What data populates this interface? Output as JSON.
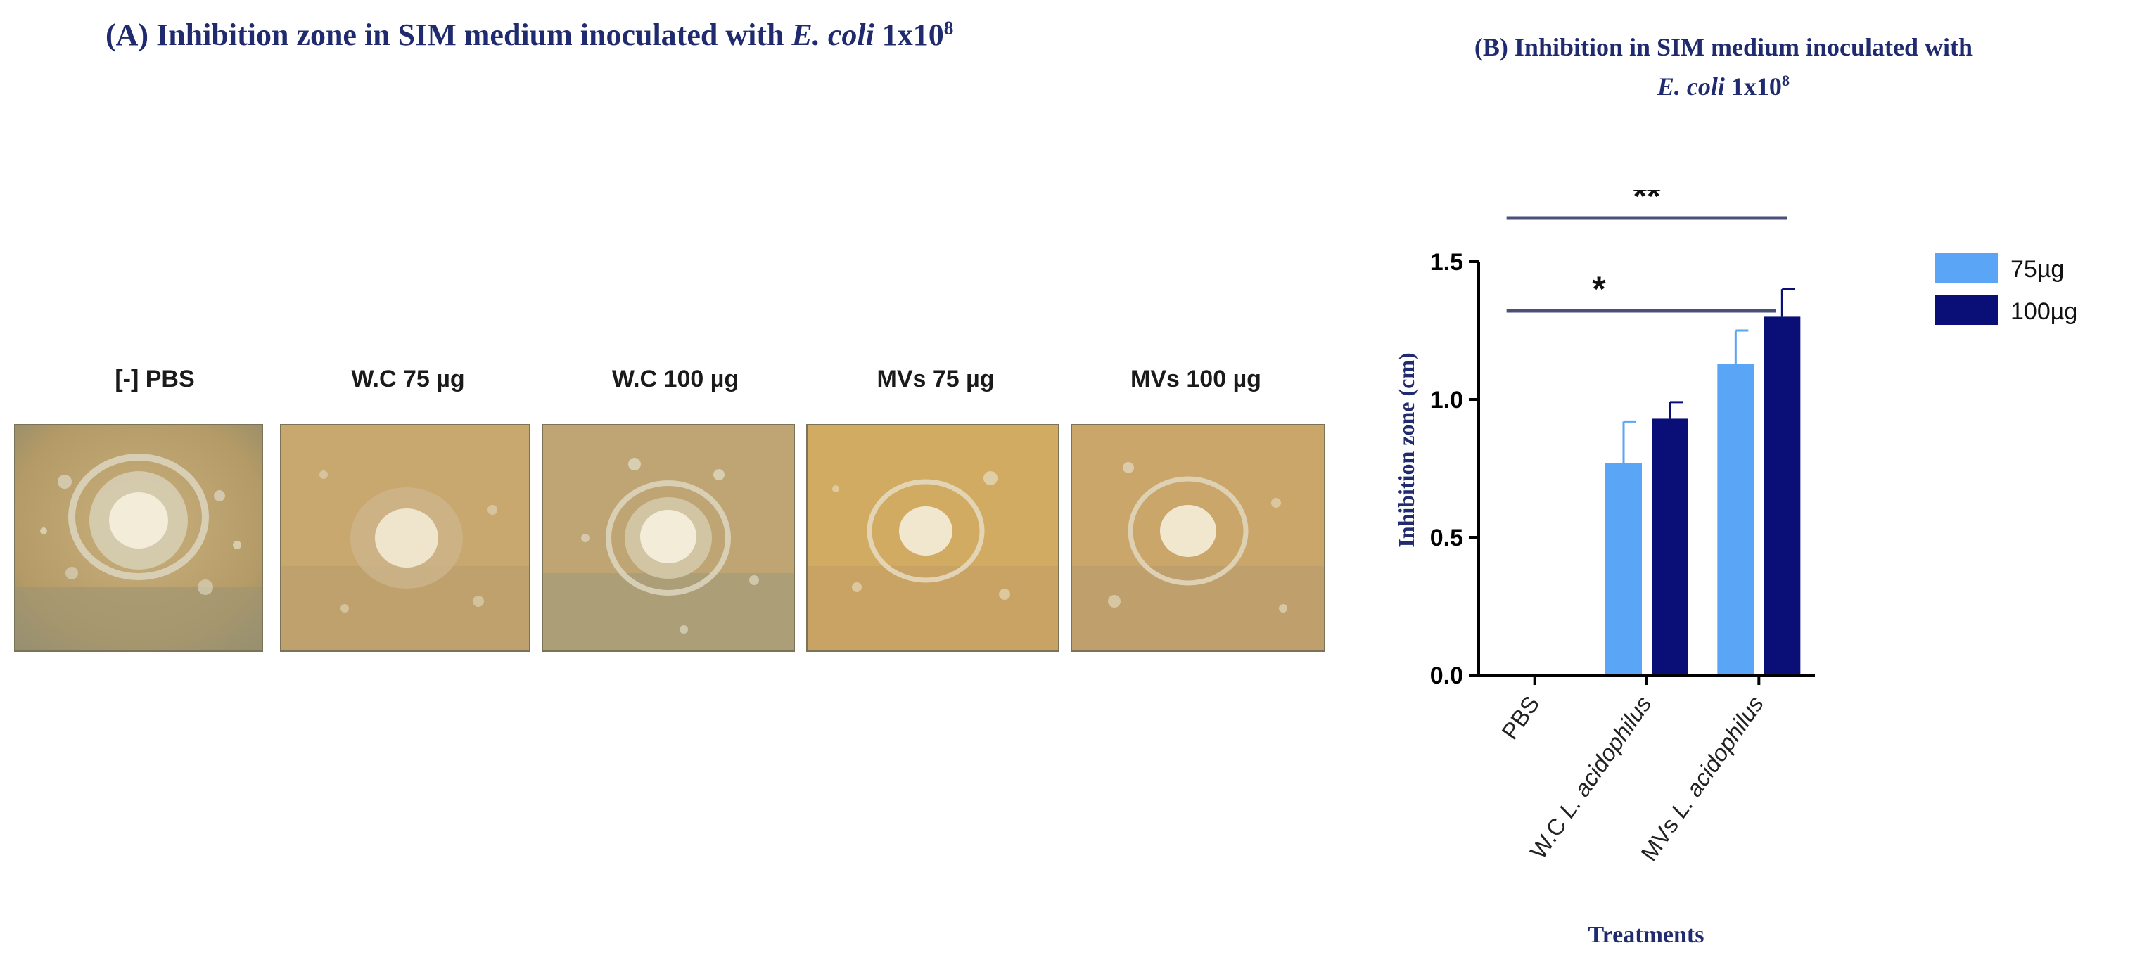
{
  "panel_a": {
    "title_prefix": "(A) Inhibition zone in SIM medium inoculated with",
    "title_species": "E. coli",
    "title_conc_base": "1x10",
    "title_conc_exp": "8",
    "images": [
      {
        "label": "[-] PBS"
      },
      {
        "label": "W.C 75 µg"
      },
      {
        "label": "W.C 100 µg"
      },
      {
        "label": "MVs 75 µg"
      },
      {
        "label": "MVs 100 µg"
      }
    ]
  },
  "chart_data": {
    "type": "bar",
    "title_line1": "(B) Inhibition in SIM medium inoculated with",
    "title_species": "E. coli",
    "title_conc_base": "1x10",
    "title_conc_exp": "8",
    "categories": [
      {
        "prefix": "PBS",
        "species": ""
      },
      {
        "prefix": "W.C ",
        "species": "L. acidophilus"
      },
      {
        "prefix": "MVs ",
        "species": "L. acidophilus"
      }
    ],
    "series": [
      {
        "name": "75µg",
        "color": "#5aa5f5",
        "values": [
          0,
          0.77,
          1.13
        ],
        "errors": [
          0,
          0.15,
          0.12
        ]
      },
      {
        "name": "100µg",
        "color": "#0a0f78",
        "values": [
          0,
          0.93,
          1.3
        ],
        "errors": [
          0,
          0.06,
          0.1
        ]
      }
    ],
    "ylabel": "Inhibition zone (cm)",
    "xlabel": "Treatments",
    "ylim": [
      0,
      1.5
    ],
    "yticks": [
      "0.0",
      "0.5",
      "1.0",
      "1.5"
    ],
    "significance": [
      {
        "label": "**",
        "from": 0,
        "to": 2
      },
      {
        "label": "*",
        "from": 0,
        "to": 1.9
      }
    ],
    "legend_position": "right",
    "axis_color": "#000000",
    "title_color": "#1f2b6e",
    "sig_line_color": "#4b4f7a"
  }
}
